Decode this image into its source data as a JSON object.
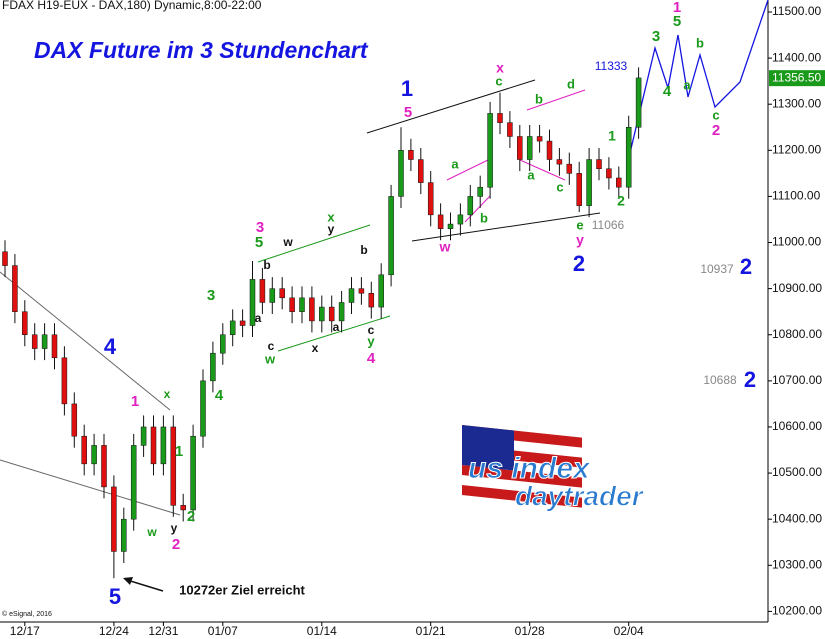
{
  "chart_data": {
    "type": "candlestick",
    "header": "FDAX H19-EUX - DAX,180) Dynamic,8:00-22:00",
    "title": "DAX Future im 3 Stundenchart",
    "credit": "© eSignal, 2016",
    "logo": [
      "us index",
      "daytrader"
    ],
    "categories": [
      null,
      null,
      "12/17",
      null,
      null,
      null,
      null,
      null,
      null,
      null,
      null,
      "12/24",
      null,
      null,
      null,
      null,
      "12/31",
      null,
      null,
      null,
      null,
      null,
      "01/07",
      null,
      null,
      null,
      null,
      null,
      null,
      null,
      null,
      null,
      "01/14",
      null,
      null,
      null,
      null,
      null,
      null,
      null,
      null,
      null,
      null,
      "01/21",
      null,
      null,
      null,
      null,
      null,
      null,
      null,
      null,
      null,
      "01/28",
      null,
      null,
      null,
      null,
      null,
      null,
      null,
      null,
      null,
      "02/04",
      null
    ],
    "open": [
      10980,
      10950,
      10850,
      10800,
      10770,
      10800,
      10750,
      10650,
      10580,
      10520,
      10560,
      10470,
      10330,
      10400,
      10560,
      10600,
      10520,
      10600,
      10430,
      10420,
      10580,
      10700,
      10760,
      10800,
      10830,
      10820,
      10920,
      10870,
      10900,
      10880,
      10850,
      10880,
      10830,
      10860,
      10830,
      10870,
      10900,
      10890,
      10860,
      10930,
      11100,
      11200,
      11180,
      11130,
      11060,
      11030,
      11040,
      11060,
      11100,
      11120,
      11280,
      11260,
      11230,
      11180,
      11230,
      11220,
      11180,
      11170,
      11150,
      11080,
      11180,
      11160,
      11140,
      11120,
      11250
    ],
    "high": [
      11005,
      10975,
      10875,
      10825,
      10825,
      10825,
      10775,
      10675,
      10605,
      10585,
      10585,
      10495,
      10425,
      10585,
      10625,
      10625,
      10625,
      10625,
      10455,
      10605,
      10725,
      10785,
      10825,
      10855,
      10855,
      10960,
      10945,
      10925,
      10925,
      10905,
      10905,
      10905,
      10885,
      10885,
      10895,
      10925,
      10925,
      10915,
      10955,
      11125,
      11250,
      11225,
      11205,
      11155,
      11085,
      11065,
      11085,
      11125,
      11145,
      11305,
      11325,
      11285,
      11255,
      11255,
      11255,
      11245,
      11205,
      11195,
      11175,
      11205,
      11205,
      11185,
      11165,
      11275,
      11380
    ],
    "low": [
      10925,
      10825,
      10775,
      10745,
      10745,
      10725,
      10625,
      10555,
      10495,
      10495,
      10445,
      10272,
      10305,
      10375,
      10535,
      10495,
      10495,
      10405,
      10395,
      10395,
      10555,
      10675,
      10735,
      10775,
      10795,
      10795,
      10845,
      10845,
      10855,
      10825,
      10825,
      10805,
      10805,
      10805,
      10805,
      10845,
      10865,
      10835,
      10835,
      10905,
      11075,
      11155,
      11105,
      11035,
      11005,
      11005,
      11015,
      11035,
      11075,
      11095,
      11235,
      11205,
      11155,
      11155,
      11195,
      11155,
      11145,
      11125,
      11066,
      11055,
      11135,
      11115,
      11095,
      11095,
      11225
    ],
    "close": [
      10950,
      10850,
      10800,
      10770,
      10800,
      10750,
      10650,
      10580,
      10520,
      10560,
      10470,
      10330,
      10400,
      10560,
      10600,
      10520,
      10600,
      10430,
      10420,
      10580,
      10700,
      10760,
      10800,
      10830,
      10820,
      10920,
      10870,
      10900,
      10880,
      10850,
      10880,
      10830,
      10860,
      10830,
      10870,
      10900,
      10890,
      10860,
      10930,
      11100,
      11200,
      11180,
      11130,
      11060,
      11030,
      11040,
      11060,
      11100,
      11120,
      11280,
      11260,
      11230,
      11180,
      11230,
      11220,
      11180,
      11170,
      11150,
      11080,
      11180,
      11160,
      11140,
      11120,
      11250,
      11357
    ],
    "up_color": "#1a9a1a",
    "down_color": "#e01010",
    "last_price": {
      "value": 11356.5,
      "label": "11356.50"
    },
    "ylim": [
      10177,
      11526
    ],
    "yticks": [
      {
        "value": 10200,
        "label": "10200.00"
      },
      {
        "value": 10300,
        "label": "10300.00"
      },
      {
        "value": 10400,
        "label": "10400.00"
      },
      {
        "value": 10500,
        "label": "10500.00"
      },
      {
        "value": 10600,
        "label": "10600.00"
      },
      {
        "value": 10700,
        "label": "10700.00"
      },
      {
        "value": 10800,
        "label": "10800.00"
      },
      {
        "value": 10900,
        "label": "10900.00"
      },
      {
        "value": 11000,
        "label": "11000.00"
      },
      {
        "value": 11100,
        "label": "11100.00"
      },
      {
        "value": 11200,
        "label": "11200.00"
      },
      {
        "value": 11300,
        "label": "11300.00"
      },
      {
        "value": 11400,
        "label": "11400.00"
      },
      {
        "value": 11500,
        "label": "11500.00"
      }
    ],
    "annotations": [
      {
        "text": "4",
        "color": "#1515e0"
      },
      {
        "text": "5",
        "color": "#1515e0"
      },
      {
        "text": "1",
        "color": "#1515e0"
      },
      {
        "text": "2",
        "color": "#1515e0"
      },
      {
        "text": "2",
        "color": "#1515e0"
      },
      {
        "text": "2",
        "color": "#1515e0"
      },
      {
        "text": "1",
        "color": "#e020c0"
      },
      {
        "text": "2",
        "color": "#e020c0"
      },
      {
        "text": "3",
        "color": "#e020c0"
      },
      {
        "text": "4",
        "color": "#e020c0"
      },
      {
        "text": "5",
        "color": "#e020c0"
      },
      {
        "text": "x",
        "color": "#e020c0"
      },
      {
        "text": "w",
        "color": "#e020c0"
      },
      {
        "text": "y",
        "color": "#e020c0"
      },
      {
        "text": "2",
        "color": "#e020c0"
      },
      {
        "text": "1",
        "color": "#e020c0"
      },
      {
        "text": "x",
        "color": "#1a9a1a"
      },
      {
        "text": "1",
        "color": "#1a9a1a"
      },
      {
        "text": "2",
        "color": "#1a9a1a"
      },
      {
        "text": "3",
        "color": "#1a9a1a"
      },
      {
        "text": "4",
        "color": "#1a9a1a"
      },
      {
        "text": "5",
        "color": "#1a9a1a"
      },
      {
        "text": "x",
        "color": "#1a9a1a"
      },
      {
        "text": "w",
        "color": "#1a9a1a"
      },
      {
        "text": "y",
        "color": "#1a9a1a"
      },
      {
        "text": "a",
        "color": "#1a9a1a"
      },
      {
        "text": "b",
        "color": "#1a9a1a"
      },
      {
        "text": "c",
        "color": "#1a9a1a"
      },
      {
        "text": "a",
        "color": "#1a9a1a"
      },
      {
        "text": "b",
        "color": "#1a9a1a"
      },
      {
        "text": "c",
        "color": "#1a9a1a"
      },
      {
        "text": "d",
        "color": "#1a9a1a"
      },
      {
        "text": "e",
        "color": "#1a9a1a"
      },
      {
        "text": "1",
        "color": "#1a9a1a"
      },
      {
        "text": "2",
        "color": "#1a9a1a"
      },
      {
        "text": "3",
        "color": "#1a9a1a"
      },
      {
        "text": "4",
        "color": "#1a9a1a"
      },
      {
        "text": "5",
        "color": "#1a9a1a"
      },
      {
        "text": "a",
        "color": "#1a9a1a"
      },
      {
        "text": "b",
        "color": "#1a9a1a"
      },
      {
        "text": "c",
        "color": "#1a9a1a"
      },
      {
        "text": "w",
        "color": "#1a9a1a"
      },
      {
        "text": "y",
        "color": "#111111"
      },
      {
        "text": "c",
        "color": "#111111"
      },
      {
        "text": "b",
        "color": "#111111"
      },
      {
        "text": "a",
        "color": "#111111"
      },
      {
        "text": "w",
        "color": "#111111"
      },
      {
        "text": "y",
        "color": "#111111"
      },
      {
        "text": "x",
        "color": "#111111"
      },
      {
        "text": "a",
        "color": "#111111"
      },
      {
        "text": "b",
        "color": "#111111"
      },
      {
        "text": "c",
        "color": "#111111"
      },
      {
        "text": "11066",
        "color": "#888888"
      },
      {
        "text": "10937",
        "color": "#888888"
      },
      {
        "text": "10688",
        "color": "#888888"
      },
      {
        "text": "11333",
        "color": "#1515e0"
      },
      {
        "text": "10272er Ziel erreicht",
        "color": "#111111"
      }
    ]
  }
}
